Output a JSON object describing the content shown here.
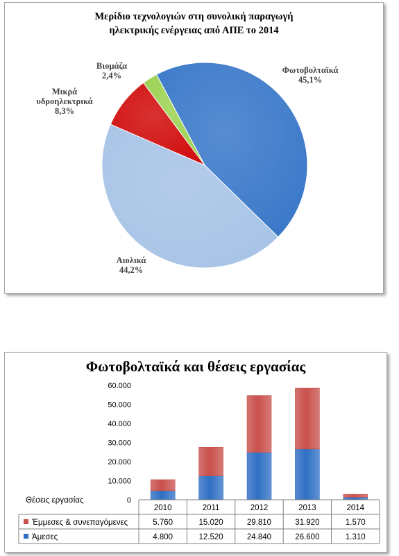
{
  "chart_data": [
    {
      "type": "pie",
      "title_line1": "Μερίδιο τεχνολογιών στη συνολική παραγωγή",
      "title_line2": "ηλεκτρικής ενέργειας από ΑΠΕ το 2014",
      "slices": [
        {
          "label": "Φωτοβολταϊκά",
          "pct_text": "45,1%",
          "value": 45.1,
          "color": "#3a78c9"
        },
        {
          "label": "Αιολικά",
          "pct_text": "44,2%",
          "value": 44.2,
          "color": "#a7c3e6"
        },
        {
          "label": "Μικρά υδροηλεκτρικά",
          "label_line1": "Μικρά",
          "label_line2": "υδροηλεκτρικά",
          "pct_text": "8,3%",
          "value": 8.3,
          "color": "#d10d0d"
        },
        {
          "label": "Βιομάζα",
          "pct_text": "2,4%",
          "value": 2.4,
          "color": "#9bd150"
        }
      ]
    },
    {
      "type": "bar",
      "stacked": true,
      "title": "Φωτοβολταϊκά και θέσεις εργασίας",
      "ylabel": "Θέσεις εργασίας",
      "categories": [
        "2010",
        "2011",
        "2012",
        "2013",
        "2014"
      ],
      "ylim": [
        0,
        60000
      ],
      "y_ticks": [
        "0",
        "10.000",
        "20.000",
        "30.000",
        "40.000",
        "50.000",
        "60.000"
      ],
      "grid": false,
      "series": [
        {
          "name": "Άμεσες",
          "values": [
            4800,
            12520,
            24840,
            26600,
            1310
          ],
          "labels": [
            "4.800",
            "12.520",
            "24.840",
            "26.600",
            "1.310"
          ],
          "color": "#2f6fc4"
        },
        {
          "name": "Έμμεσες & συνεπαγόμενες",
          "values": [
            5760,
            15020,
            29810,
            31920,
            1570
          ],
          "labels": [
            "5.760",
            "15.020",
            "29.810",
            "31.920",
            "1.570"
          ],
          "color": "#c9504c"
        }
      ]
    }
  ]
}
